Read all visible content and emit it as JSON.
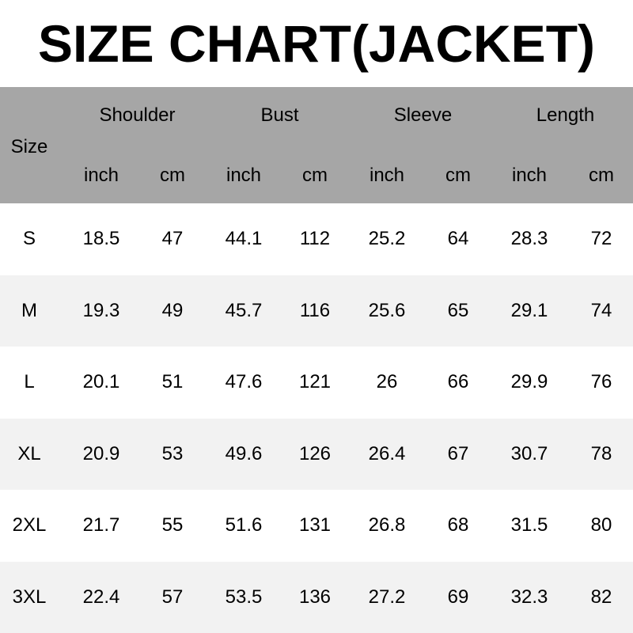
{
  "title": "SIZE CHART(JACKET)",
  "header": {
    "size_label": "Size",
    "groups": [
      "Shoulder",
      "Bust",
      "Sleeve",
      "Length"
    ],
    "units": [
      "inch",
      "cm"
    ]
  },
  "colors": {
    "header_bg": "#a6a6a6",
    "alt_row_bg": "#f2f2f2"
  },
  "rows": [
    [
      "S",
      "18.5",
      "47",
      "44.1",
      "112",
      "25.2",
      "64",
      "28.3",
      "72"
    ],
    [
      "M",
      "19.3",
      "49",
      "45.7",
      "116",
      "25.6",
      "65",
      "29.1",
      "74"
    ],
    [
      "L",
      "20.1",
      "51",
      "47.6",
      "121",
      "26",
      "66",
      "29.9",
      "76"
    ],
    [
      "XL",
      "20.9",
      "53",
      "49.6",
      "126",
      "26.4",
      "67",
      "30.7",
      "78"
    ],
    [
      "2XL",
      "21.7",
      "55",
      "51.6",
      "131",
      "26.8",
      "68",
      "31.5",
      "80"
    ],
    [
      "3XL",
      "22.4",
      "57",
      "53.5",
      "136",
      "27.2",
      "69",
      "32.3",
      "82"
    ]
  ]
}
